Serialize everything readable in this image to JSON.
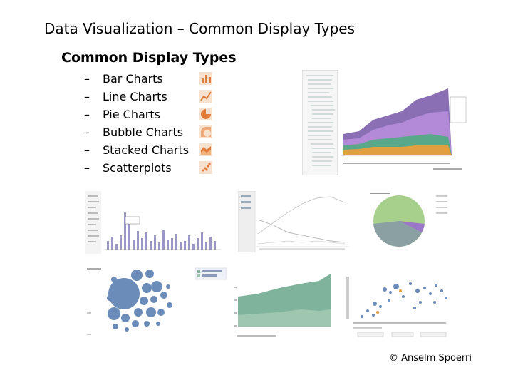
{
  "slide": {
    "title": "Data Visualization – Common Display Types",
    "subtitle": "Common Display Types",
    "items": [
      {
        "label": "Bar Charts",
        "icon": "bar-chart-icon"
      },
      {
        "label": "Line Charts",
        "icon": "line-chart-icon"
      },
      {
        "label": "Pie Charts",
        "icon": "pie-chart-icon"
      },
      {
        "label": "Bubble Charts",
        "icon": "bubble-chart-icon"
      },
      {
        "label": "Stacked Charts",
        "icon": "stacked-chart-icon"
      },
      {
        "label": "Scatterplots",
        "icon": "scatterplot-icon"
      }
    ],
    "copyright": "© Anselm Spoerri"
  },
  "colors": {
    "icon_fill": "#e07b3a",
    "icon_bg": "#f7e2cf",
    "bar": "#9a97c6",
    "pie_green": "#a8d08d",
    "pie_gray": "#8aa0a3",
    "bubble": "#6b8bb8",
    "stack_green": "#7fb39b",
    "stack_purple": "#9b78c6"
  }
}
